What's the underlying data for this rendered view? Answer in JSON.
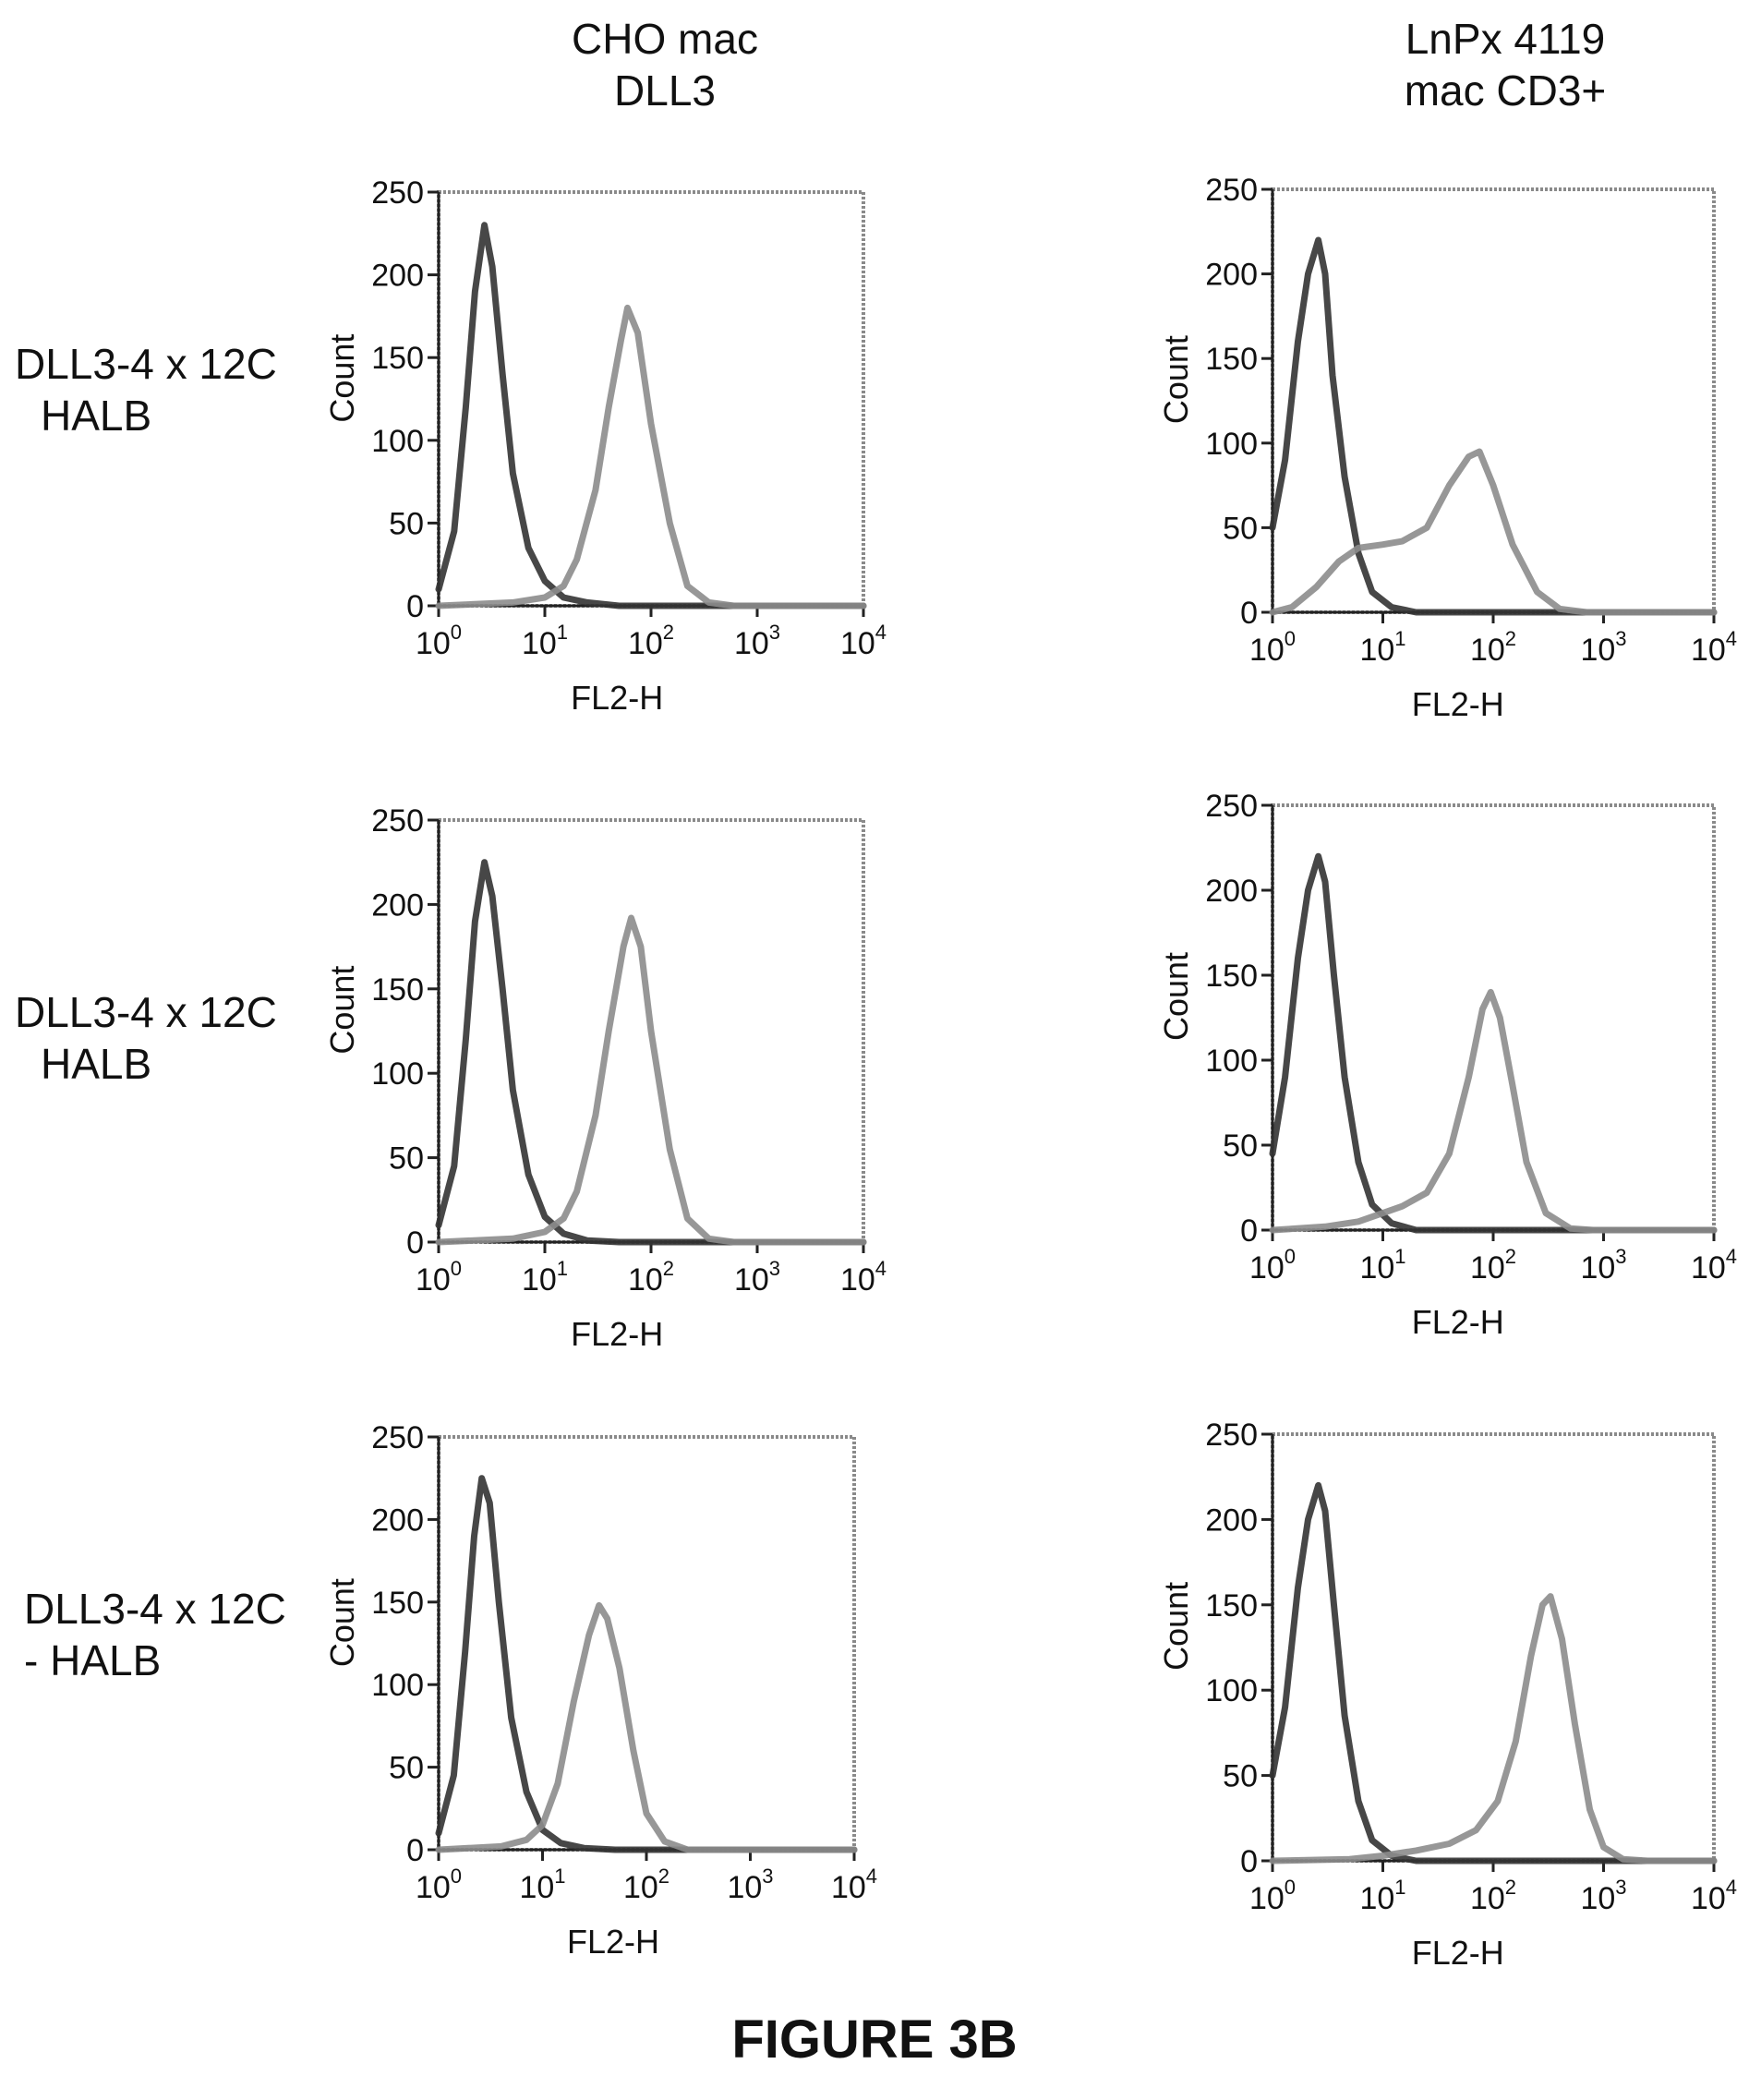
{
  "column_headers": [
    {
      "line1": "CHO mac",
      "line2": "DLL3"
    },
    {
      "line1": "LnPx 4119",
      "line2": "mac CD3+"
    }
  ],
  "row_labels": [
    {
      "line1": "DLL3-4 x 12C",
      "line2": "HALB"
    },
    {
      "line1": "DLL3-4 x 12C",
      "line2": "HALB"
    },
    {
      "line1": "DLL3-4 x 12C",
      "line2": "- HALB"
    }
  ],
  "figure_title": "FIGURE 3B",
  "colors": {
    "curve_dark": "#333333",
    "curve_light": "#8c8c8c",
    "frame": "#8a8a8a"
  },
  "chart_data": [
    {
      "type": "line",
      "xlabel": "FL2-H",
      "ylabel": "Count",
      "xscale": "log",
      "xlim": [
        1,
        10000
      ],
      "ylim": [
        0,
        250
      ],
      "x_ticks": [
        {
          "base": "10",
          "exp": "0"
        },
        {
          "base": "10",
          "exp": "1"
        },
        {
          "base": "10",
          "exp": "2"
        },
        {
          "base": "10",
          "exp": "3"
        },
        {
          "base": "10",
          "exp": "4"
        }
      ],
      "y_ticks": [
        "0",
        "50",
        "100",
        "150",
        "200",
        "250"
      ],
      "series": [
        {
          "points": [
            [
              1,
              10
            ],
            [
              1.4,
              45
            ],
            [
              1.8,
              120
            ],
            [
              2.2,
              190
            ],
            [
              2.7,
              230
            ],
            [
              3.2,
              205
            ],
            [
              4,
              140
            ],
            [
              5,
              80
            ],
            [
              7,
              35
            ],
            [
              10,
              15
            ],
            [
              15,
              5
            ],
            [
              25,
              2
            ],
            [
              50,
              0
            ],
            [
              10000,
              0
            ]
          ]
        },
        {
          "points": [
            [
              1,
              0
            ],
            [
              5,
              2
            ],
            [
              10,
              5
            ],
            [
              15,
              12
            ],
            [
              20,
              28
            ],
            [
              30,
              70
            ],
            [
              40,
              120
            ],
            [
              52,
              160
            ],
            [
              60,
              180
            ],
            [
              75,
              165
            ],
            [
              100,
              110
            ],
            [
              150,
              50
            ],
            [
              220,
              12
            ],
            [
              350,
              2
            ],
            [
              600,
              0
            ],
            [
              10000,
              0
            ]
          ]
        }
      ]
    },
    {
      "type": "line",
      "xlabel": "FL2-H",
      "ylabel": "Count",
      "xscale": "log",
      "xlim": [
        1,
        10000
      ],
      "ylim": [
        0,
        250
      ],
      "x_ticks": [
        {
          "base": "10",
          "exp": "0"
        },
        {
          "base": "10",
          "exp": "1"
        },
        {
          "base": "10",
          "exp": "2"
        },
        {
          "base": "10",
          "exp": "3"
        },
        {
          "base": "10",
          "exp": "4"
        }
      ],
      "y_ticks": [
        "0",
        "50",
        "100",
        "150",
        "200",
        "250"
      ],
      "series": [
        {
          "points": [
            [
              1,
              50
            ],
            [
              1.3,
              90
            ],
            [
              1.7,
              160
            ],
            [
              2.1,
              200
            ],
            [
              2.6,
              220
            ],
            [
              3.0,
              200
            ],
            [
              3.5,
              140
            ],
            [
              4.5,
              80
            ],
            [
              6,
              35
            ],
            [
              8,
              12
            ],
            [
              12,
              3
            ],
            [
              20,
              0
            ],
            [
              10000,
              0
            ]
          ]
        },
        {
          "points": [
            [
              1,
              0
            ],
            [
              1.5,
              3
            ],
            [
              2.5,
              15
            ],
            [
              4,
              30
            ],
            [
              6,
              38
            ],
            [
              10,
              40
            ],
            [
              15,
              42
            ],
            [
              25,
              50
            ],
            [
              40,
              75
            ],
            [
              60,
              92
            ],
            [
              75,
              95
            ],
            [
              100,
              75
            ],
            [
              150,
              40
            ],
            [
              250,
              12
            ],
            [
              400,
              2
            ],
            [
              700,
              0
            ],
            [
              10000,
              0
            ]
          ]
        }
      ]
    },
    {
      "type": "line",
      "xlabel": "FL2-H",
      "ylabel": "Count",
      "xscale": "log",
      "xlim": [
        1,
        10000
      ],
      "ylim": [
        0,
        250
      ],
      "x_ticks": [
        {
          "base": "10",
          "exp": "0"
        },
        {
          "base": "10",
          "exp": "1"
        },
        {
          "base": "10",
          "exp": "2"
        },
        {
          "base": "10",
          "exp": "3"
        },
        {
          "base": "10",
          "exp": "4"
        }
      ],
      "y_ticks": [
        "0",
        "50",
        "100",
        "150",
        "200",
        "250"
      ],
      "series": [
        {
          "points": [
            [
              1,
              10
            ],
            [
              1.4,
              45
            ],
            [
              1.8,
              120
            ],
            [
              2.2,
              190
            ],
            [
              2.7,
              225
            ],
            [
              3.2,
              205
            ],
            [
              4,
              150
            ],
            [
              5,
              90
            ],
            [
              7,
              40
            ],
            [
              10,
              15
            ],
            [
              15,
              5
            ],
            [
              25,
              1
            ],
            [
              50,
              0
            ],
            [
              10000,
              0
            ]
          ]
        },
        {
          "points": [
            [
              1,
              0
            ],
            [
              5,
              2
            ],
            [
              10,
              6
            ],
            [
              15,
              14
            ],
            [
              20,
              30
            ],
            [
              30,
              75
            ],
            [
              40,
              125
            ],
            [
              55,
              175
            ],
            [
              65,
              192
            ],
            [
              80,
              175
            ],
            [
              100,
              125
            ],
            [
              150,
              55
            ],
            [
              220,
              14
            ],
            [
              350,
              2
            ],
            [
              600,
              0
            ],
            [
              10000,
              0
            ]
          ]
        }
      ]
    },
    {
      "type": "line",
      "xlabel": "FL2-H",
      "ylabel": "Count",
      "xscale": "log",
      "xlim": [
        1,
        10000
      ],
      "ylim": [
        0,
        250
      ],
      "x_ticks": [
        {
          "base": "10",
          "exp": "0"
        },
        {
          "base": "10",
          "exp": "1"
        },
        {
          "base": "10",
          "exp": "2"
        },
        {
          "base": "10",
          "exp": "3"
        },
        {
          "base": "10",
          "exp": "4"
        }
      ],
      "y_ticks": [
        "0",
        "50",
        "100",
        "150",
        "200",
        "250"
      ],
      "series": [
        {
          "points": [
            [
              1,
              45
            ],
            [
              1.3,
              90
            ],
            [
              1.7,
              160
            ],
            [
              2.1,
              200
            ],
            [
              2.6,
              220
            ],
            [
              3.0,
              205
            ],
            [
              3.6,
              150
            ],
            [
              4.5,
              90
            ],
            [
              6,
              40
            ],
            [
              8,
              15
            ],
            [
              12,
              4
            ],
            [
              20,
              0
            ],
            [
              10000,
              0
            ]
          ]
        },
        {
          "points": [
            [
              1,
              0
            ],
            [
              3,
              2
            ],
            [
              6,
              5
            ],
            [
              10,
              10
            ],
            [
              15,
              14
            ],
            [
              25,
              22
            ],
            [
              40,
              45
            ],
            [
              60,
              90
            ],
            [
              80,
              130
            ],
            [
              95,
              140
            ],
            [
              115,
              125
            ],
            [
              150,
              85
            ],
            [
              200,
              40
            ],
            [
              300,
              10
            ],
            [
              500,
              1
            ],
            [
              800,
              0
            ],
            [
              10000,
              0
            ]
          ]
        }
      ]
    },
    {
      "type": "line",
      "xlabel": "FL2-H",
      "ylabel": "Count",
      "xscale": "log",
      "xlim": [
        1,
        10000
      ],
      "ylim": [
        0,
        250
      ],
      "x_ticks": [
        {
          "base": "10",
          "exp": "0"
        },
        {
          "base": "10",
          "exp": "1"
        },
        {
          "base": "10",
          "exp": "2"
        },
        {
          "base": "10",
          "exp": "3"
        },
        {
          "base": "10",
          "exp": "4"
        }
      ],
      "y_ticks": [
        "0",
        "50",
        "100",
        "150",
        "200",
        "250"
      ],
      "series": [
        {
          "points": [
            [
              1,
              10
            ],
            [
              1.4,
              45
            ],
            [
              1.8,
              120
            ],
            [
              2.2,
              190
            ],
            [
              2.6,
              225
            ],
            [
              3.1,
              210
            ],
            [
              3.8,
              150
            ],
            [
              5,
              80
            ],
            [
              7,
              35
            ],
            [
              10,
              12
            ],
            [
              15,
              4
            ],
            [
              25,
              1
            ],
            [
              50,
              0
            ],
            [
              10000,
              0
            ]
          ]
        },
        {
          "points": [
            [
              1,
              0
            ],
            [
              4,
              2
            ],
            [
              7,
              6
            ],
            [
              10,
              15
            ],
            [
              14,
              40
            ],
            [
              20,
              90
            ],
            [
              28,
              130
            ],
            [
              35,
              148
            ],
            [
              42,
              140
            ],
            [
              55,
              110
            ],
            [
              75,
              60
            ],
            [
              100,
              22
            ],
            [
              150,
              5
            ],
            [
              250,
              0
            ],
            [
              10000,
              0
            ]
          ]
        }
      ]
    },
    {
      "type": "line",
      "xlabel": "FL2-H",
      "ylabel": "Count",
      "xscale": "log",
      "xlim": [
        1,
        10000
      ],
      "ylim": [
        0,
        250
      ],
      "x_ticks": [
        {
          "base": "10",
          "exp": "0"
        },
        {
          "base": "10",
          "exp": "1"
        },
        {
          "base": "10",
          "exp": "2"
        },
        {
          "base": "10",
          "exp": "3"
        },
        {
          "base": "10",
          "exp": "4"
        }
      ],
      "y_ticks": [
        "0",
        "50",
        "100",
        "150",
        "200",
        "250"
      ],
      "series": [
        {
          "points": [
            [
              1,
              50
            ],
            [
              1.3,
              90
            ],
            [
              1.7,
              160
            ],
            [
              2.1,
              200
            ],
            [
              2.6,
              220
            ],
            [
              3.0,
              205
            ],
            [
              3.6,
              150
            ],
            [
              4.5,
              85
            ],
            [
              6,
              35
            ],
            [
              8,
              12
            ],
            [
              12,
              3
            ],
            [
              20,
              0
            ],
            [
              10000,
              0
            ]
          ]
        },
        {
          "points": [
            [
              1,
              0
            ],
            [
              5,
              1
            ],
            [
              10,
              3
            ],
            [
              20,
              6
            ],
            [
              40,
              10
            ],
            [
              70,
              18
            ],
            [
              110,
              35
            ],
            [
              160,
              70
            ],
            [
              220,
              120
            ],
            [
              280,
              150
            ],
            [
              330,
              155
            ],
            [
              420,
              130
            ],
            [
              550,
              80
            ],
            [
              750,
              30
            ],
            [
              1000,
              8
            ],
            [
              1500,
              1
            ],
            [
              2500,
              0
            ],
            [
              10000,
              0
            ]
          ]
        }
      ]
    }
  ]
}
